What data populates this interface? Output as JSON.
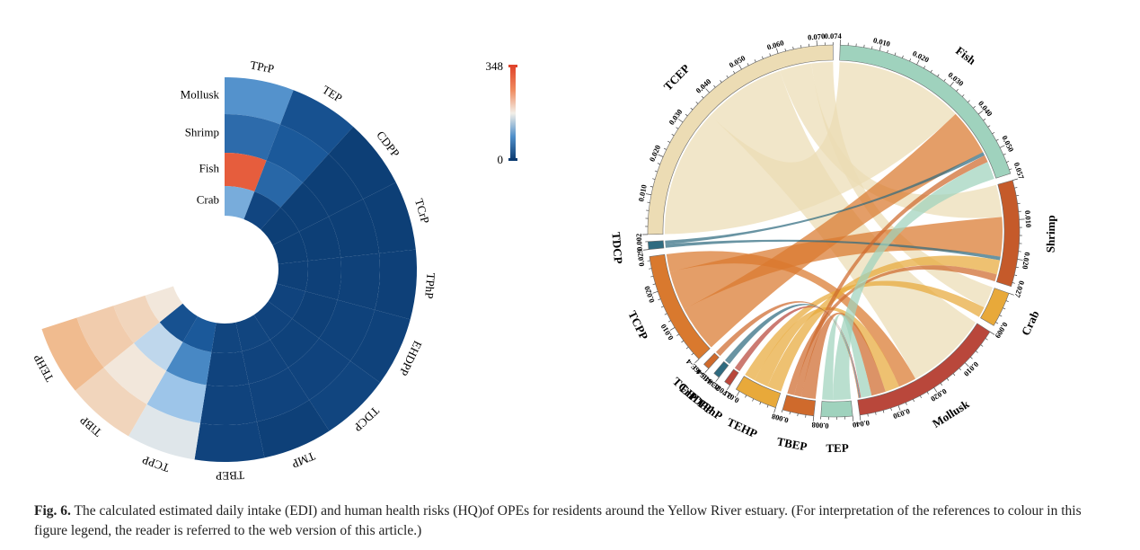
{
  "chart_data": [
    {
      "type": "heatmap",
      "layout": "circular",
      "rows": [
        "Mollusk",
        "Shrimp",
        "Fish",
        "Crab"
      ],
      "columns": [
        "TPrP",
        "TEP",
        "CDPP",
        "TCrP",
        "TPhP",
        "EHDPP",
        "TDCP",
        "TMP",
        "TBEP",
        "TCPP",
        "TiBP",
        "TEHP"
      ],
      "values": [
        [
          100,
          30,
          6,
          6,
          8,
          10,
          14,
          8,
          12,
          180,
          220,
          250
        ],
        [
          60,
          40,
          6,
          6,
          9,
          10,
          12,
          12,
          12,
          140,
          200,
          230
        ],
        [
          330,
          55,
          6,
          6,
          8,
          8,
          10,
          12,
          12,
          90,
          160,
          220
        ],
        [
          120,
          15,
          6,
          6,
          8,
          12,
          12,
          14,
          14,
          40,
          30,
          200
        ]
      ],
      "colorbar": {
        "min": 0,
        "max": 348,
        "min_label": "0",
        "max_label": "348"
      },
      "colors": {
        "low": "#0b3a70",
        "mid": "#f2efe8",
        "high": "#e0452c"
      }
    },
    {
      "type": "chord",
      "sectors": [
        {
          "name": "Fish",
          "total": 0.057,
          "ticks": [
            "0.010",
            "0.020",
            "0.030",
            "0.040",
            "0.050"
          ],
          "end_label": "0.057",
          "color": "#9fd2bd"
        },
        {
          "name": "Shrimp",
          "total": 0.027,
          "ticks": [
            "0.010",
            "0.020"
          ],
          "end_label": "0.027",
          "color": "#c55a2a"
        },
        {
          "name": "Crab",
          "total": 0.009,
          "ticks": [],
          "end_label": "0.009",
          "color": "#e8a93a"
        },
        {
          "name": "Mollusk",
          "total": 0.04,
          "ticks": [
            "0.010",
            "0.020",
            "0.030"
          ],
          "end_label": "0.040",
          "color": "#b9473b"
        },
        {
          "name": "TEP",
          "total": 0.008,
          "ticks": [],
          "end_label": "0.008",
          "color": "#9fd2bd"
        },
        {
          "name": "TBEP",
          "total": 0.008,
          "ticks": [],
          "end_label": "0.008",
          "color": "#cf6a2c"
        },
        {
          "name": "TEHP",
          "total": 0.011,
          "ticks": [],
          "end_label": "0.011",
          "color": "#e8a93a"
        },
        {
          "name": "TPhP",
          "total": 0.000271,
          "ticks": [],
          "end_label": "2.708E-4",
          "color": "#b9473b"
        },
        {
          "name": "EHDPP",
          "total": 0.000238,
          "ticks": [],
          "end_label": "2.384E-4",
          "color": "#2f6b80"
        },
        {
          "name": "TCrP",
          "total": 0.000165,
          "ticks": [],
          "end_label": "1.646E-4",
          "color": "#cf6a2c"
        },
        {
          "name": "TCPP",
          "total": 0.029,
          "ticks": [
            "0.010",
            "0.020"
          ],
          "end_label": "0.029",
          "color": "#d9792e"
        },
        {
          "name": "TDCP",
          "total": 0.002,
          "ticks": [],
          "end_label": "0.002",
          "color": "#2f6b80"
        },
        {
          "name": "TCEP",
          "total": 0.074,
          "ticks": [
            "0.010",
            "0.020",
            "0.030",
            "0.040",
            "0.050",
            "0.060",
            "0.070"
          ],
          "end_label": "0.074",
          "color": "#ecdcb4"
        }
      ],
      "links": [
        {
          "source": "TCEP",
          "target": "Fish",
          "value": 0.036
        },
        {
          "source": "TCEP",
          "target": "Mollusk",
          "value": 0.023
        },
        {
          "source": "TCEP",
          "target": "Shrimp",
          "value": 0.009
        },
        {
          "source": "TCEP",
          "target": "Crab",
          "value": 0.006
        },
        {
          "source": "TCPP",
          "target": "Fish",
          "value": 0.013
        },
        {
          "source": "TCPP",
          "target": "Shrimp",
          "value": 0.011
        },
        {
          "source": "TCPP",
          "target": "Mollusk",
          "value": 0.005
        },
        {
          "source": "TDCP",
          "target": "Shrimp",
          "value": 0.001
        },
        {
          "source": "TDCP",
          "target": "Fish",
          "value": 0.001
        },
        {
          "source": "TEHP",
          "target": "Shrimp",
          "value": 0.004
        },
        {
          "source": "TEHP",
          "target": "Mollusk",
          "value": 0.004
        },
        {
          "source": "TEHP",
          "target": "Crab",
          "value": 0.003
        },
        {
          "source": "TBEP",
          "target": "Mollusk",
          "value": 0.004
        },
        {
          "source": "TBEP",
          "target": "Fish",
          "value": 0.002
        },
        {
          "source": "TBEP",
          "target": "Shrimp",
          "value": 0.002
        },
        {
          "source": "TEP",
          "target": "Fish",
          "value": 0.005
        },
        {
          "source": "TEP",
          "target": "Mollusk",
          "value": 0.003
        },
        {
          "source": "TPhP",
          "target": "Mollusk",
          "value": 0.00027
        },
        {
          "source": "EHDPP",
          "target": "Mollusk",
          "value": 0.00024
        },
        {
          "source": "TCrP",
          "target": "Mollusk",
          "value": 0.00016
        }
      ]
    }
  ],
  "caption": {
    "label": "Fig. 6.",
    "text": " The calculated estimated daily intake (EDI) and human health risks (HQ)of OPEs for residents around the Yellow River estuary. (For interpretation of the references to colour in this figure legend, the reader is referred to the web version of this article.)"
  }
}
